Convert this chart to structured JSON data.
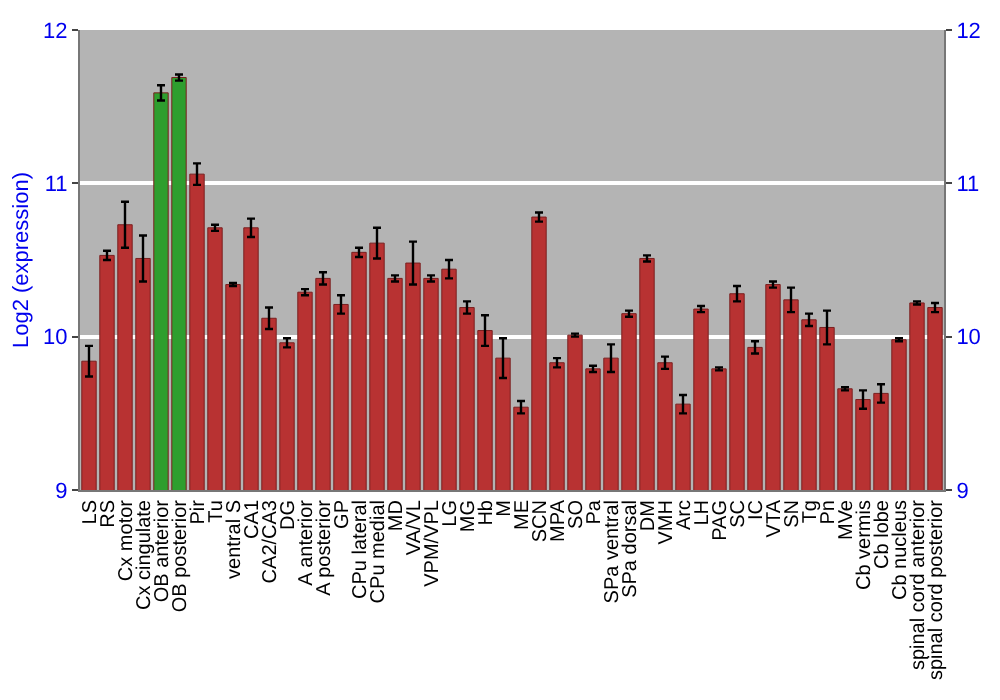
{
  "chart_data": {
    "type": "bar",
    "ylabel": "Log2 (expression)",
    "categories": [
      "LS",
      "RS",
      "Cx motor",
      "Cx cingulate",
      "OB anterior",
      "OB posterior",
      "Pir",
      "Tu",
      "ventral S",
      "CA1",
      "CA2/CA3",
      "DG",
      "A anterior",
      "A posterior",
      "GP",
      "CPu lateral",
      "CPu medial",
      "MD",
      "VA/VL",
      "VPM/VPL",
      "LG",
      "MG",
      "Hb",
      "M",
      "ME",
      "SCN",
      "MPA",
      "SO",
      "Pa",
      "SPa ventral",
      "SPa dorsal",
      "DM",
      "VMH",
      "Arc",
      "LH",
      "PAG",
      "SC",
      "IC",
      "VTA",
      "SN",
      "Tg",
      "Pn",
      "MVe",
      "Cb vermis",
      "Cb lobe",
      "Cb nucleus",
      "spinal cord anterior",
      "spinal cord posterior"
    ],
    "values": [
      9.84,
      10.53,
      10.73,
      10.51,
      11.59,
      11.69,
      11.06,
      10.71,
      10.34,
      10.71,
      10.12,
      9.96,
      10.29,
      10.38,
      10.21,
      10.55,
      10.61,
      10.38,
      10.48,
      10.38,
      10.44,
      10.19,
      10.04,
      9.86,
      9.54,
      10.78,
      9.83,
      10.01,
      9.79,
      9.86,
      10.15,
      10.51,
      9.83,
      9.56,
      10.18,
      9.79,
      10.28,
      9.93,
      10.34,
      10.24,
      10.11,
      10.06,
      9.66,
      9.59,
      9.63,
      9.98,
      10.22,
      10.19
    ],
    "errors": [
      0.1,
      0.03,
      0.15,
      0.15,
      0.05,
      0.02,
      0.07,
      0.02,
      0.01,
      0.06,
      0.07,
      0.03,
      0.02,
      0.04,
      0.06,
      0.03,
      0.1,
      0.02,
      0.14,
      0.02,
      0.06,
      0.04,
      0.1,
      0.13,
      0.04,
      0.03,
      0.03,
      0.01,
      0.02,
      0.09,
      0.02,
      0.02,
      0.04,
      0.06,
      0.02,
      0.01,
      0.05,
      0.04,
      0.02,
      0.08,
      0.04,
      0.11,
      0.01,
      0.06,
      0.06,
      0.01,
      0.01,
      0.03
    ],
    "colors": [
      "#b83232",
      "#b83232",
      "#b83232",
      "#b83232",
      "#2e9e2e",
      "#2e9e2e",
      "#b83232",
      "#b83232",
      "#b83232",
      "#b83232",
      "#b83232",
      "#b83232",
      "#b83232",
      "#b83232",
      "#b83232",
      "#b83232",
      "#b83232",
      "#b83232",
      "#b83232",
      "#b83232",
      "#b83232",
      "#b83232",
      "#b83232",
      "#b83232",
      "#b83232",
      "#b83232",
      "#b83232",
      "#b83232",
      "#b83232",
      "#b83232",
      "#b83232",
      "#b83232",
      "#b83232",
      "#b83232",
      "#b83232",
      "#b83232",
      "#b83232",
      "#b83232",
      "#b83232",
      "#b83232",
      "#b83232",
      "#b83232",
      "#b83232",
      "#b83232",
      "#b83232",
      "#b83232",
      "#b83232",
      "#b83232"
    ],
    "ylim": [
      9,
      12
    ],
    "yticks": [
      9,
      10,
      11,
      12
    ],
    "y2lim": [
      9,
      12
    ],
    "y2ticks": [
      9,
      10,
      11,
      12
    ],
    "grid": "y",
    "legend": false
  }
}
